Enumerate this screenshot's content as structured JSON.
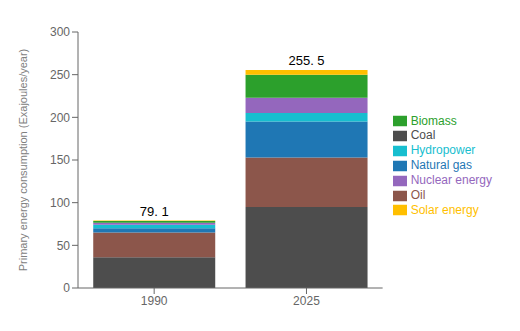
{
  "chart_data": {
    "type": "bar",
    "stacked": true,
    "ylabel": "Primary energy consumption (Exajoules/year)",
    "categories": [
      "1990",
      "2025"
    ],
    "series": [
      {
        "name": "Coal",
        "color": "#4d4d4d",
        "values": [
          36,
          95
        ]
      },
      {
        "name": "Oil",
        "color": "#8c564b",
        "values": [
          29,
          58
        ]
      },
      {
        "name": "Natural gas",
        "color": "#1f77b4",
        "values": [
          5,
          42
        ]
      },
      {
        "name": "Hydropower",
        "color": "#17becf",
        "values": [
          4,
          10
        ]
      },
      {
        "name": "Nuclear energy",
        "color": "#9467bd",
        "values": [
          2.5,
          18
        ]
      },
      {
        "name": "Biomass",
        "color": "#2ca02c",
        "values": [
          2,
          27
        ]
      },
      {
        "name": "Solar energy",
        "color": "#ffbf00",
        "values": [
          0.6,
          5.5
        ]
      }
    ],
    "annotations": [
      {
        "text": "79. 1",
        "category": "1990"
      },
      {
        "text": "255. 5",
        "category": "2025"
      }
    ],
    "ylim": [
      0,
      300
    ],
    "yticks": [
      0,
      50,
      100,
      150,
      200,
      250,
      300
    ],
    "grid": false,
    "legend": "right"
  }
}
